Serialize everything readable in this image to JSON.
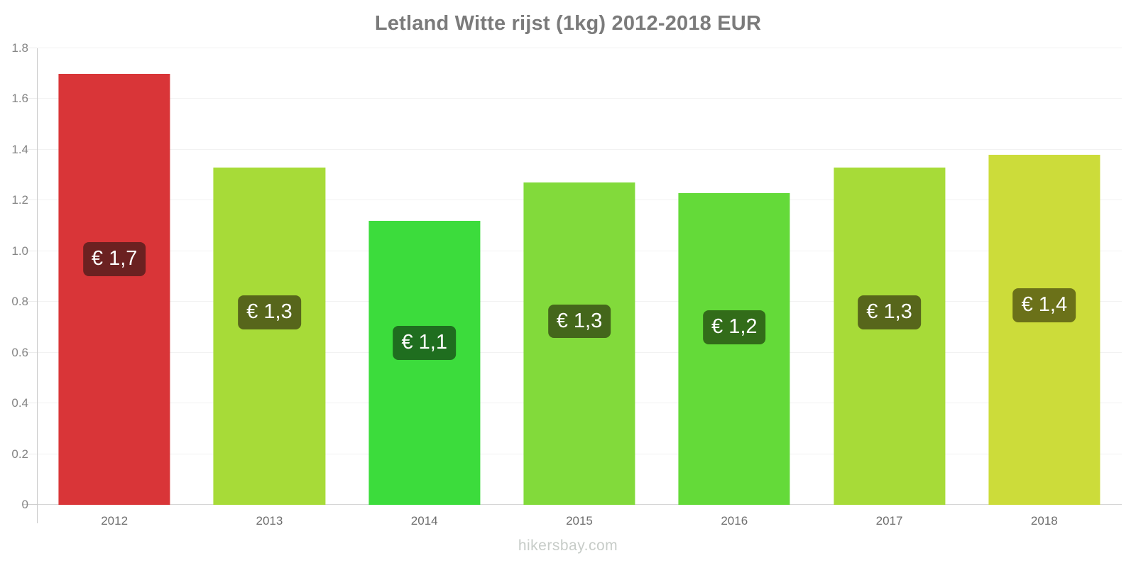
{
  "title": "Letland Witte rijst (1kg) 2012-2018 EUR",
  "footer": "hikersbay.com",
  "chart_data": {
    "type": "bar",
    "title": "Letland Witte rijst (1kg) 2012-2018 EUR",
    "categories": [
      "2012",
      "2013",
      "2014",
      "2015",
      "2016",
      "2017",
      "2018"
    ],
    "values": [
      1.7,
      1.33,
      1.12,
      1.27,
      1.23,
      1.33,
      1.38
    ],
    "bar_labels": [
      "€ 1,7",
      "€ 1,3",
      "€ 1,1",
      "€ 1,3",
      "€ 1,2",
      "€ 1,3",
      "€ 1,4"
    ],
    "bar_colors": [
      "#d93538",
      "#a7db38",
      "#3cdc3c",
      "#82da3b",
      "#64da39",
      "#a7db38",
      "#ccdc3a"
    ],
    "label_bg_colors": [
      "#6b2121",
      "#57661b",
      "#1f6e1f",
      "#44671b",
      "#326c19",
      "#57661b",
      "#6b7119"
    ],
    "label_text_color": "#ffffff",
    "xlabel": "",
    "ylabel": "",
    "ylim": [
      0,
      1.8
    ],
    "ytick_step": 0.2,
    "ytick_labels": [
      "0",
      "0.2",
      "0.4",
      "0.6",
      "0.8",
      "1.0",
      "1.2",
      "1.4",
      "1.6",
      "1.8"
    ],
    "grid": "horizontal",
    "legend": "none",
    "label_position_fraction_from_bottom": 0.57
  },
  "colors": {
    "background": "#ffffff",
    "title_text": "#7b7b7b",
    "axis_line": "#c9c9c9",
    "gridline": "#f2f2f2",
    "baseline": "#d6d6d6",
    "ytick_text": "#858585",
    "xtick_text": "#6e6e6e",
    "watermark_text": "#c7ccc8"
  }
}
